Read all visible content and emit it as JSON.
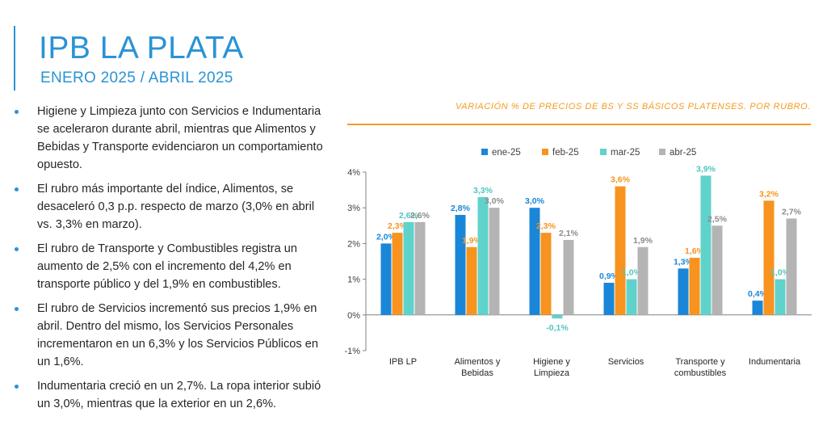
{
  "header": {
    "title": "IPB LA PLATA",
    "subtitle": "ENERO 2025 / ABRIL 2025"
  },
  "bullets": [
    "Higiene y Limpieza junto con Servicios e Indumentaria se aceleraron durante abril, mientras que Alimentos y Bebidas y Transporte evidenciaron un comportamiento opuesto.",
    "El rubro más importante del índice, Alimentos, se desaceleró 0,3 p.p. respecto de marzo (3,0% en abril vs. 3,3% en marzo).",
    "El rubro de Transporte y Combustibles registra un aumento de 2,5% con el incremento del 4,2% en transporte público y del 1,9% en combustibles.",
    "El rubro de Servicios incrementó sus precios 1,9% en abril. Dentro del mismo, los Servicios Personales incrementaron en un 6,3% y los Servicios Públicos en un 1,6%.",
    "Indumentaria creció en un 2,7%. La ropa interior subió un 3,0%, mientras que la exterior en un 2,6%."
  ],
  "colors": {
    "accent": "#2a93d5",
    "orange": "#f39c1f",
    "series": [
      "#1a86d8",
      "#f7931e",
      "#5fd3cb",
      "#b4b4b4"
    ]
  },
  "chart_data": {
    "type": "bar",
    "title": "VARIACIÓN % DE PRECIOS DE BS Y SS BÁSICOS PLATENSES. POR RUBRO.",
    "categories": [
      [
        "IPB LP"
      ],
      [
        "Alimentos y",
        "Bebidas"
      ],
      [
        "Higiene y",
        "Limpieza"
      ],
      [
        "Servicios"
      ],
      [
        "Transporte y",
        "combustibles"
      ],
      [
        "Indumentaria"
      ]
    ],
    "series": [
      {
        "name": "ene-25",
        "values": [
          2.0,
          2.8,
          3.0,
          0.9,
          1.3,
          0.4
        ],
        "labels": [
          "2,0%",
          "2,8%",
          "3,0%",
          "0,9%",
          "1,3%",
          "0,4%"
        ]
      },
      {
        "name": "feb-25",
        "values": [
          2.3,
          1.9,
          2.3,
          3.6,
          1.6,
          3.2
        ],
        "labels": [
          "2,3%",
          "1,9%",
          "2,3%",
          "3,6%",
          "1,6%",
          "3,2%"
        ]
      },
      {
        "name": "mar-25",
        "values": [
          2.6,
          3.3,
          -0.1,
          1.0,
          3.9,
          1.0
        ],
        "labels": [
          "2,6%",
          "3,3%",
          "-0,1%",
          "1,0%",
          "3,9%",
          "1,0%"
        ]
      },
      {
        "name": "abr-25",
        "values": [
          2.6,
          3.0,
          2.1,
          1.9,
          2.5,
          2.7
        ],
        "labels": [
          "2,6%",
          "3,0%",
          "2,1%",
          "1,9%",
          "2,5%",
          "2,7%"
        ]
      }
    ],
    "ylim": [
      -1,
      4
    ],
    "yticks": [
      4,
      3,
      2,
      1,
      0,
      -1
    ],
    "ytick_labels": [
      "4%",
      "3%",
      "2%",
      "1%",
      "0%",
      "-1%"
    ],
    "legend_position": "top",
    "grid": false
  }
}
